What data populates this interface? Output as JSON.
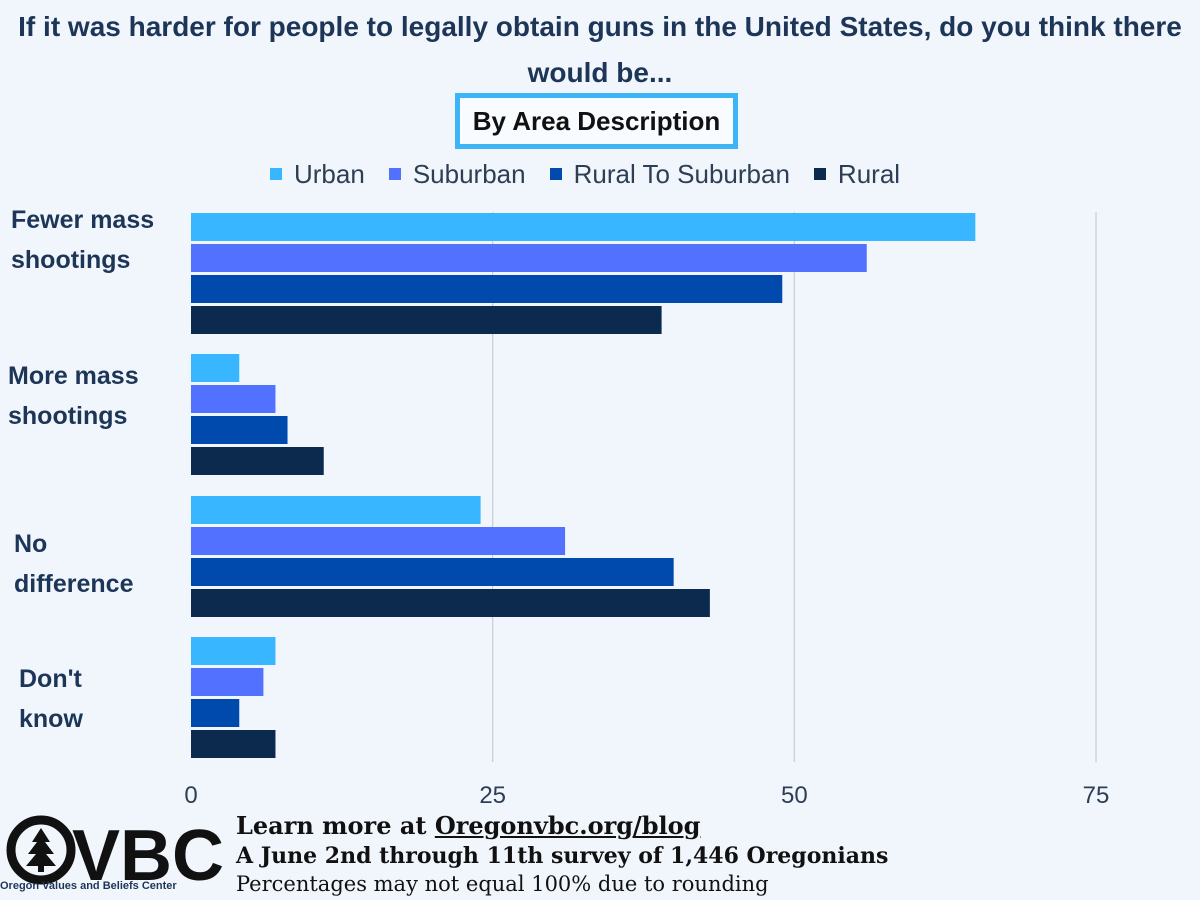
{
  "title": "If it was harder for people to legally obtain guns in the United States, do you think there would be...",
  "subtitle": "By Area Description",
  "chart_data": {
    "type": "bar",
    "orientation": "horizontal",
    "categories": [
      "Fewer mass shootings",
      "More mass shootings",
      "No difference",
      "Don't know"
    ],
    "series": [
      {
        "name": "Urban",
        "color": "#38b6ff",
        "values": [
          65,
          4,
          24,
          7
        ]
      },
      {
        "name": "Suburban",
        "color": "#5271ff",
        "values": [
          56,
          7,
          31,
          6
        ]
      },
      {
        "name": "Rural To Suburban",
        "color": "#004aad",
        "values": [
          49,
          8,
          40,
          4
        ]
      },
      {
        "name": "Rural",
        "color": "#0c2a4d",
        "values": [
          39,
          11,
          43,
          7
        ]
      }
    ],
    "xlim": [
      0,
      75
    ],
    "xticks": [
      0,
      25,
      50,
      75
    ],
    "grid": true,
    "legend": "top"
  },
  "footer": {
    "logo_letters": "VBC",
    "logo_name": "Oregon Values and Beliefs Center",
    "line1_prefix": "Learn more at ",
    "line1_link": "Oregonvbc.org/blog",
    "line2": "A June 2nd through 11th survey of 1,446 Oregonians",
    "line3": "Percentages may not equal  100% due to rounding"
  }
}
